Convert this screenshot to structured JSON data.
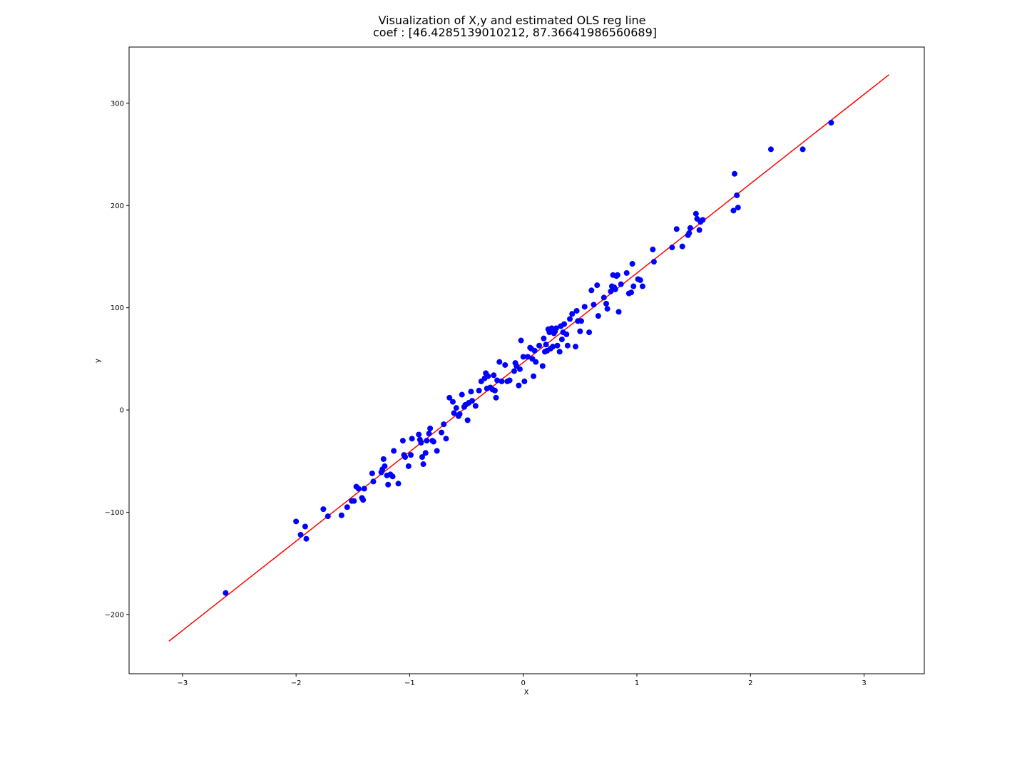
{
  "chart_data": {
    "type": "scatter",
    "title_lines": [
      "Visualization of X,y and estimated OLS reg line",
      "coef : [46.4285139010212, 87.36641986560689]"
    ],
    "xlabel": "X",
    "ylabel": "y",
    "xlim": [
      -3.47,
      3.53
    ],
    "ylim": [
      -258,
      355
    ],
    "xticks": [
      -3,
      -2,
      -1,
      0,
      1,
      2,
      3
    ],
    "xtick_labels": [
      "−3",
      "−2",
      "−1",
      "0",
      "1",
      "2",
      "3"
    ],
    "yticks": [
      -200,
      -100,
      0,
      100,
      200,
      300
    ],
    "ytick_labels": [
      "−200",
      "−100",
      "0",
      "100",
      "200",
      "300"
    ],
    "grid": false,
    "colors": {
      "points": "#0000ff",
      "line": "#ff0000"
    },
    "series": [
      {
        "kind": "points",
        "x": [
          -2.62,
          -2.0,
          -1.96,
          -1.92,
          -1.91,
          -1.76,
          -1.72,
          -1.6,
          -1.55,
          -1.51,
          -1.49,
          -1.47,
          -1.45,
          -1.42,
          -1.41,
          -1.4,
          -1.33,
          -1.32,
          -1.25,
          -1.24,
          -1.23,
          -1.22,
          -1.2,
          -1.19,
          -1.17,
          -1.15,
          -1.14,
          -1.1,
          -1.06,
          -1.05,
          -1.04,
          -1.01,
          -0.99,
          -0.98,
          -0.92,
          -0.91,
          -0.9,
          -0.89,
          -0.88,
          -0.86,
          -0.85,
          -0.83,
          -0.82,
          -0.8,
          -0.79,
          -0.76,
          -0.72,
          -0.7,
          -0.68,
          -0.65,
          -0.62,
          -0.61,
          -0.59,
          -0.57,
          -0.56,
          -0.54,
          -0.52,
          -0.51,
          -0.49,
          -0.48,
          -0.46,
          -0.45,
          -0.42,
          -0.39,
          -0.37,
          -0.34,
          -0.33,
          -0.32,
          -0.31,
          -0.29,
          -0.27,
          -0.26,
          -0.25,
          -0.24,
          -0.23,
          -0.21,
          -0.19,
          -0.16,
          -0.14,
          -0.12,
          -0.08,
          -0.07,
          -0.06,
          -0.04,
          -0.03,
          -0.02,
          0.0,
          0.01,
          0.04,
          0.06,
          0.07,
          0.08,
          0.09,
          0.1,
          0.11,
          0.14,
          0.17,
          0.18,
          0.19,
          0.2,
          0.21,
          0.22,
          0.23,
          0.24,
          0.25,
          0.26,
          0.27,
          0.28,
          0.29,
          0.3,
          0.32,
          0.33,
          0.34,
          0.35,
          0.36,
          0.38,
          0.39,
          0.41,
          0.43,
          0.46,
          0.47,
          0.48,
          0.5,
          0.51,
          0.54,
          0.58,
          0.6,
          0.62,
          0.65,
          0.66,
          0.71,
          0.73,
          0.74,
          0.77,
          0.78,
          0.79,
          0.8,
          0.81,
          0.82,
          0.83,
          0.84,
          0.86,
          0.91,
          0.93,
          0.95,
          0.96,
          0.97,
          1.01,
          1.03,
          1.05,
          1.14,
          1.15,
          1.31,
          1.35,
          1.4,
          1.45,
          1.46,
          1.47,
          1.52,
          1.53,
          1.55,
          1.56,
          1.58,
          1.85,
          1.86,
          1.88,
          1.89,
          2.18,
          2.46,
          2.71
        ],
        "y": [
          -179,
          -109,
          -122,
          -114,
          -126,
          -97,
          -104,
          -103,
          -95,
          -89,
          -89,
          -75,
          -77,
          -86,
          -88,
          -77,
          -62,
          -70,
          -61,
          -58,
          -48,
          -55,
          -64,
          -73,
          -63,
          -65,
          -40,
          -72,
          -30,
          -44,
          -46,
          -55,
          -44,
          -28,
          -24,
          -29,
          -32,
          -46,
          -53,
          -42,
          -30,
          -23,
          -18,
          -30,
          -31,
          -40,
          -22,
          -14,
          -28,
          12,
          8,
          -3,
          2,
          -6,
          -4,
          15,
          3,
          5,
          -10,
          7,
          18,
          9,
          4,
          19,
          28,
          31,
          36,
          21,
          33,
          22,
          20,
          34,
          19,
          12,
          29,
          47,
          28,
          44,
          28,
          29,
          38,
          46,
          43,
          24,
          40,
          68,
          52,
          28,
          52,
          61,
          60,
          50,
          33,
          58,
          47,
          63,
          43,
          70,
          57,
          64,
          58,
          79,
          76,
          60,
          80,
          62,
          75,
          77,
          80,
          63,
          57,
          82,
          69,
          76,
          84,
          74,
          63,
          89,
          94,
          62,
          97,
          87,
          77,
          87,
          101,
          76,
          117,
          103,
          122,
          92,
          110,
          104,
          99,
          116,
          121,
          132,
          120,
          118,
          131,
          132,
          96,
          123,
          134,
          114,
          115,
          143,
          121,
          128,
          127,
          121,
          157,
          145,
          159,
          177,
          160,
          171,
          173,
          178,
          192,
          187,
          176,
          184,
          186,
          195,
          231,
          210,
          198,
          255,
          255,
          281
        ]
      },
      {
        "kind": "line",
        "x": [
          -3.12,
          3.22
        ],
        "y": [
          -226.2,
          328.0
        ]
      }
    ]
  }
}
